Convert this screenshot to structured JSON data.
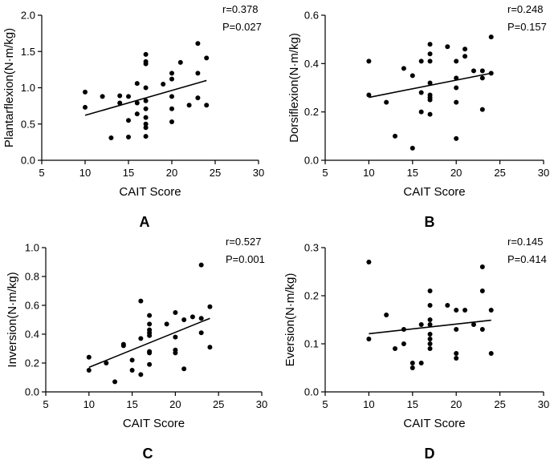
{
  "chart_data": [
    {
      "type": "scatter",
      "panel_label": "A",
      "xlabel": "CAIT Score",
      "ylabel": "Plantarflexion(N·m/kg)",
      "xlim": [
        5,
        30
      ],
      "ylim": [
        0.0,
        2.0
      ],
      "xticks": [
        5,
        10,
        15,
        20,
        25,
        30
      ],
      "yticks": [
        0.0,
        0.5,
        1.0,
        1.5,
        2.0
      ],
      "ytick_labels": [
        "0.0",
        "0.5",
        "1.0",
        "1.5",
        "2.0"
      ],
      "stats": {
        "r": "r=0.378",
        "p": "P=0.027"
      },
      "regression": {
        "x": [
          10,
          24
        ],
        "y": [
          0.62,
          1.1
        ]
      },
      "points": [
        [
          10,
          0.94
        ],
        [
          10,
          0.73
        ],
        [
          12,
          0.88
        ],
        [
          13,
          0.31
        ],
        [
          14,
          0.89
        ],
        [
          14,
          0.79
        ],
        [
          15,
          0.55
        ],
        [
          15,
          0.32
        ],
        [
          15,
          0.88
        ],
        [
          16,
          1.06
        ],
        [
          16,
          0.79
        ],
        [
          16,
          0.64
        ],
        [
          17,
          1.46
        ],
        [
          17,
          1.36
        ],
        [
          17,
          1.33
        ],
        [
          17,
          1.0
        ],
        [
          17,
          0.82
        ],
        [
          17,
          0.71
        ],
        [
          17,
          0.59
        ],
        [
          17,
          0.5
        ],
        [
          17,
          0.45
        ],
        [
          17,
          0.33
        ],
        [
          19,
          1.05
        ],
        [
          20,
          1.2
        ],
        [
          20,
          1.12
        ],
        [
          20,
          0.88
        ],
        [
          20,
          0.71
        ],
        [
          20,
          0.53
        ],
        [
          21,
          1.35
        ],
        [
          22,
          0.76
        ],
        [
          23,
          1.61
        ],
        [
          23,
          1.2
        ],
        [
          23,
          0.86
        ],
        [
          24,
          1.41
        ],
        [
          24,
          0.76
        ]
      ]
    },
    {
      "type": "scatter",
      "panel_label": "B",
      "xlabel": "CAIT Score",
      "ylabel": "Dorsiflexion(N·m/kg)",
      "xlim": [
        5,
        30
      ],
      "ylim": [
        0.0,
        0.6
      ],
      "xticks": [
        5,
        10,
        15,
        20,
        25,
        30
      ],
      "yticks": [
        0.0,
        0.2,
        0.4,
        0.6
      ],
      "ytick_labels": [
        "0.0",
        "0.2",
        "0.4",
        "0.6"
      ],
      "stats": {
        "r": "r=0.248",
        "p": "P=0.157"
      },
      "regression": {
        "x": [
          10,
          24
        ],
        "y": [
          0.26,
          0.36
        ]
      },
      "points": [
        [
          10,
          0.41
        ],
        [
          10,
          0.27
        ],
        [
          12,
          0.24
        ],
        [
          13,
          0.1
        ],
        [
          14,
          0.38
        ],
        [
          15,
          0.05
        ],
        [
          15,
          0.35
        ],
        [
          16,
          0.41
        ],
        [
          16,
          0.28
        ],
        [
          16,
          0.2
        ],
        [
          17,
          0.48
        ],
        [
          17,
          0.44
        ],
        [
          17,
          0.41
        ],
        [
          17,
          0.32
        ],
        [
          17,
          0.27
        ],
        [
          17,
          0.26
        ],
        [
          17,
          0.25
        ],
        [
          17,
          0.19
        ],
        [
          19,
          0.47
        ],
        [
          20,
          0.41
        ],
        [
          20,
          0.34
        ],
        [
          20,
          0.3
        ],
        [
          20,
          0.24
        ],
        [
          20,
          0.09
        ],
        [
          21,
          0.46
        ],
        [
          21,
          0.43
        ],
        [
          22,
          0.37
        ],
        [
          23,
          0.37
        ],
        [
          23,
          0.34
        ],
        [
          23,
          0.21
        ],
        [
          24,
          0.51
        ],
        [
          24,
          0.36
        ]
      ]
    },
    {
      "type": "scatter",
      "panel_label": "C",
      "xlabel": "CAIT Score",
      "ylabel": "Inversion(N·m/kg)",
      "xlim": [
        5,
        30
      ],
      "ylim": [
        0.0,
        1.0
      ],
      "xticks": [
        5,
        10,
        15,
        20,
        25,
        30
      ],
      "yticks": [
        0.0,
        0.2,
        0.4,
        0.6,
        0.8,
        1.0
      ],
      "ytick_labels": [
        "0.0",
        "0.2",
        "0.4",
        "0.6",
        "0.8",
        "1.0"
      ],
      "stats": {
        "r": "r=0.527",
        "p": "P=0.001"
      },
      "regression": {
        "x": [
          10,
          24
        ],
        "y": [
          0.17,
          0.51
        ]
      },
      "points": [
        [
          10,
          0.24
        ],
        [
          10,
          0.15
        ],
        [
          12,
          0.2
        ],
        [
          13,
          0.07
        ],
        [
          14,
          0.33
        ],
        [
          14,
          0.32
        ],
        [
          15,
          0.22
        ],
        [
          15,
          0.15
        ],
        [
          16,
          0.63
        ],
        [
          16,
          0.37
        ],
        [
          16,
          0.12
        ],
        [
          17,
          0.53
        ],
        [
          17,
          0.47
        ],
        [
          17,
          0.43
        ],
        [
          17,
          0.41
        ],
        [
          17,
          0.39
        ],
        [
          17,
          0.28
        ],
        [
          17,
          0.27
        ],
        [
          17,
          0.19
        ],
        [
          19,
          0.47
        ],
        [
          20,
          0.55
        ],
        [
          20,
          0.38
        ],
        [
          20,
          0.29
        ],
        [
          20,
          0.27
        ],
        [
          21,
          0.5
        ],
        [
          21,
          0.16
        ],
        [
          22,
          0.52
        ],
        [
          23,
          0.88
        ],
        [
          23,
          0.51
        ],
        [
          23,
          0.41
        ],
        [
          24,
          0.59
        ],
        [
          24,
          0.31
        ]
      ]
    },
    {
      "type": "scatter",
      "panel_label": "D",
      "xlabel": "CAIT Score",
      "ylabel": "Eversion(N·m/kg)",
      "xlim": [
        5,
        30
      ],
      "ylim": [
        0.0,
        0.3
      ],
      "xticks": [
        5,
        10,
        15,
        20,
        25,
        30
      ],
      "yticks": [
        0.0,
        0.1,
        0.2,
        0.3
      ],
      "ytick_labels": [
        "0.0",
        "0.1",
        "0.2",
        "0.3"
      ],
      "stats": {
        "r": "r=0.145",
        "p": "P=0.414"
      },
      "regression": {
        "x": [
          10,
          24
        ],
        "y": [
          0.121,
          0.149
        ]
      },
      "points": [
        [
          10,
          0.27
        ],
        [
          10,
          0.11
        ],
        [
          12,
          0.16
        ],
        [
          13,
          0.09
        ],
        [
          14,
          0.13
        ],
        [
          14,
          0.1
        ],
        [
          15,
          0.06
        ],
        [
          15,
          0.05
        ],
        [
          16,
          0.14
        ],
        [
          16,
          0.06
        ],
        [
          17,
          0.21
        ],
        [
          17,
          0.18
        ],
        [
          17,
          0.15
        ],
        [
          17,
          0.14
        ],
        [
          17,
          0.12
        ],
        [
          17,
          0.11
        ],
        [
          17,
          0.1
        ],
        [
          17,
          0.09
        ],
        [
          19,
          0.18
        ],
        [
          20,
          0.17
        ],
        [
          20,
          0.13
        ],
        [
          20,
          0.08
        ],
        [
          20,
          0.07
        ],
        [
          21,
          0.17
        ],
        [
          22,
          0.14
        ],
        [
          23,
          0.26
        ],
        [
          23,
          0.21
        ],
        [
          23,
          0.13
        ],
        [
          24,
          0.17
        ],
        [
          24,
          0.08
        ]
      ]
    }
  ]
}
